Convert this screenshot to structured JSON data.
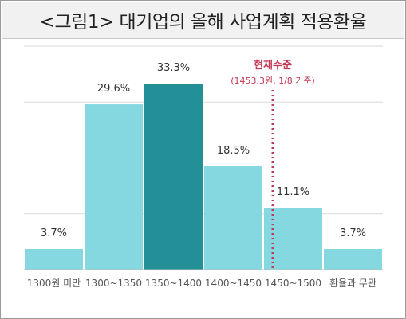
{
  "title": "<그림1> 대기업의 올해 사업계획 적용환율",
  "colors": {
    "bar": "#86d8e0",
    "highlight_bar": "#238f97",
    "marker": "#c43a55",
    "grid": "#d9d9d9"
  },
  "chart_data": {
    "type": "bar",
    "categories": [
      "1300원 미만",
      "1300~1350",
      "1350~1400",
      "1400~1450",
      "1450~1500",
      "환율과 무관"
    ],
    "values": [
      3.7,
      29.6,
      33.3,
      18.5,
      11.1,
      3.7
    ],
    "value_labels": [
      "3.7%",
      "29.6%",
      "33.3%",
      "18.5%",
      "11.1%",
      "3.7%"
    ],
    "highlight_index": 2,
    "ylim": [
      0,
      40
    ],
    "grid": true,
    "annotation": {
      "label": "현재수준",
      "sublabel": "(1453.3원, 1/8 기준)",
      "position": "between 1400~1450 and 1450~1500"
    }
  }
}
